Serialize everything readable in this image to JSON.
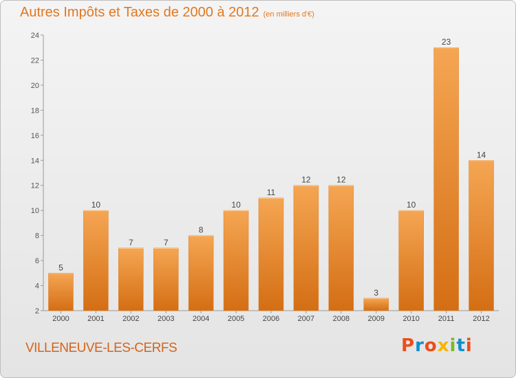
{
  "header": {
    "title": "Autres Impôts et Taxes de 2000 à 2012",
    "unit": "(en milliers d'€)"
  },
  "footer": {
    "location": "VILLENEUVE-LES-CERFS",
    "logo_text": "Proxiti"
  },
  "colors": {
    "bar_light": "#f5a653",
    "bar_dark": "#d46e14",
    "title": "#e1781e",
    "location": "#d4641a",
    "logo_letters": [
      "#e94e1b",
      "#0d8fcf",
      "#e94e1b",
      "#f7b500",
      "#7ab829",
      "#0d8fcf",
      "#e94e1b"
    ]
  },
  "chart_data": {
    "type": "bar",
    "categories": [
      "2000",
      "2001",
      "2002",
      "2003",
      "2004",
      "2005",
      "2006",
      "2007",
      "2008",
      "2009",
      "2010",
      "2011",
      "2012"
    ],
    "values": [
      5,
      10,
      7,
      7,
      8,
      10,
      11,
      12,
      12,
      3,
      10,
      23,
      14
    ],
    "ylim": [
      2,
      24
    ],
    "yticks": [
      2,
      4,
      6,
      8,
      10,
      12,
      14,
      16,
      18,
      20,
      22,
      24
    ],
    "grid": false,
    "legend": "none"
  }
}
